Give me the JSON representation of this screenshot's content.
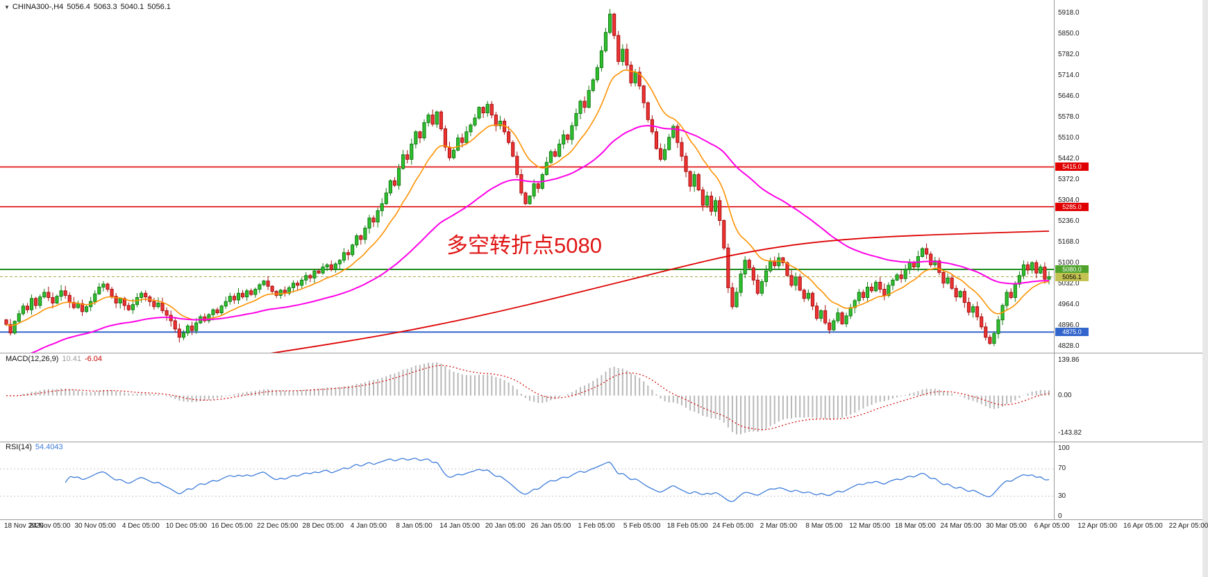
{
  "header": {
    "symbol": "CHINA300-,H4",
    "open": "5056.4",
    "high": "5063.3",
    "low": "5040.1",
    "close": "5056.1",
    "collapse_icon": "chevron-down-icon"
  },
  "annotation": {
    "text": "多空转折点5080",
    "color": "#e01515"
  },
  "price_axis": {
    "labels": [
      5918.0,
      5850.0,
      5782.0,
      5714.0,
      5646.0,
      5578.0,
      5510.0,
      5442.0,
      5372.0,
      5304.0,
      5236.0,
      5168.0,
      5100.0,
      5032.0,
      4964.0,
      4896.0,
      4828.0
    ]
  },
  "hlines": [
    {
      "name": "resistance-line-5415",
      "price": 5415.0,
      "label": "5415.0",
      "color": "#e00000",
      "tag_bg": "#e00000",
      "tag_fg": "#ffffff",
      "width": 1.6,
      "style": "solid"
    },
    {
      "name": "resistance-line-5285",
      "price": 5285.0,
      "label": "5285.0",
      "color": "#e00000",
      "tag_bg": "#e00000",
      "tag_fg": "#ffffff",
      "width": 1.6,
      "style": "solid"
    },
    {
      "name": "pivot-line-5080",
      "price": 5080.0,
      "label": "5080.0",
      "color": "#1d8a1d",
      "tag_bg": "#4fa32c",
      "tag_fg": "#ffffff",
      "width": 2,
      "style": "solid"
    },
    {
      "name": "current-price-line",
      "price": 5056.1,
      "label": "5056.1",
      "color": "#a8a84a",
      "tag_bg": "#c3c353",
      "tag_fg": "#000000",
      "width": 1,
      "style": "dash"
    },
    {
      "name": "support-line-4875",
      "price": 4875.0,
      "label": "4875.0",
      "color": "#3366cc",
      "tag_bg": "#3366cc",
      "tag_fg": "#ffffff",
      "width": 2,
      "style": "solid"
    }
  ],
  "time_axis": [
    "18 Nov 2020",
    "24 Nov 05:00",
    "30 Nov 05:00",
    "4 Dec 05:00",
    "10 Dec 05:00",
    "16 Dec 05:00",
    "22 Dec 05:00",
    "28 Dec 05:00",
    "4 Jan 05:00",
    "8 Jan 05:00",
    "14 Jan 05:00",
    "20 Jan 05:00",
    "26 Jan 05:00",
    "1 Feb 05:00",
    "5 Feb 05:00",
    "18 Feb 05:00",
    "24 Feb 05:00",
    "2 Mar 05:00",
    "8 Mar 05:00",
    "12 Mar 05:00",
    "18 Mar 05:00",
    "24 Mar 05:00",
    "30 Mar 05:00",
    "6 Apr 05:00",
    "12 Apr 05:00",
    "16 Apr 05:00",
    "22 Apr 05:00"
  ],
  "macd": {
    "label": "MACD(12,26,9)",
    "value_main": "10.41",
    "value_signal": "-6.04",
    "axis_labels": [
      "139.86",
      "0.00",
      "-143.82"
    ]
  },
  "rsi": {
    "label": "RSI(14)",
    "value": "54.4043",
    "axis_labels": [
      "100",
      "70",
      "30",
      "0"
    ],
    "levels": [
      70,
      30
    ]
  },
  "chart_data": {
    "type": "candlestick",
    "title": "CHINA300-,H4",
    "symbol": "CHINA300-",
    "timeframe": "H4",
    "x_labels": [
      "18 Nov 2020",
      "24 Nov 05:00",
      "30 Nov 05:00",
      "4 Dec 05:00",
      "10 Dec 05:00",
      "16 Dec 05:00",
      "22 Dec 05:00",
      "28 Dec 05:00",
      "4 Jan 05:00",
      "8 Jan 05:00",
      "14 Jan 05:00",
      "20 Jan 05:00",
      "26 Jan 05:00",
      "1 Feb 05:00",
      "5 Feb 05:00",
      "18 Feb 05:00",
      "24 Feb 05:00",
      "2 Mar 05:00",
      "8 Mar 05:00",
      "12 Mar 05:00",
      "18 Mar 05:00",
      "24 Mar 05:00",
      "30 Mar 05:00",
      "6 Apr 05:00",
      "12 Apr 05:00",
      "16 Apr 05:00",
      "22 Apr 05:00"
    ],
    "y_range": [
      4812,
      5952
    ],
    "current_bar": {
      "open": 5056.4,
      "high": 5063.3,
      "low": 5040.1,
      "close": 5056.1
    },
    "closes": [
      4900,
      4872,
      4910,
      4935,
      4960,
      4948,
      4985,
      4962,
      4990,
      5005,
      4988,
      4970,
      4992,
      5010,
      4995,
      4972,
      4955,
      4968,
      4942,
      4958,
      4975,
      5000,
      5022,
      5032,
      5015,
      4992,
      4970,
      4985,
      4962,
      4948,
      4965,
      4988,
      5002,
      4990,
      4975,
      4958,
      4970,
      4945,
      4930,
      4912,
      4885,
      4858,
      4872,
      4895,
      4880,
      4905,
      4925,
      4912,
      4932,
      4948,
      4938,
      4960,
      4975,
      4992,
      4980,
      5002,
      4990,
      5010,
      4998,
      5015,
      5030,
      5042,
      5025,
      5008,
      4995,
      5012,
      5002,
      5020,
      5035,
      5028,
      5045,
      5060,
      5052,
      5075,
      5068,
      5088,
      5095,
      5080,
      5098,
      5110,
      5135,
      5128,
      5160,
      5190,
      5178,
      5215,
      5248,
      5235,
      5272,
      5295,
      5330,
      5370,
      5355,
      5410,
      5455,
      5440,
      5490,
      5530,
      5510,
      5560,
      5585,
      5555,
      5595,
      5540,
      5480,
      5445,
      5470,
      5510,
      5495,
      5530,
      5552,
      5575,
      5610,
      5592,
      5620,
      5585,
      5550,
      5565,
      5530,
      5495,
      5450,
      5390,
      5330,
      5295,
      5320,
      5360,
      5345,
      5390,
      5430,
      5465,
      5450,
      5490,
      5520,
      5505,
      5550,
      5590,
      5630,
      5610,
      5665,
      5700,
      5740,
      5795,
      5855,
      5915,
      5845,
      5760,
      5800,
      5748,
      5690,
      5725,
      5680,
      5625,
      5570,
      5530,
      5475,
      5440,
      5472,
      5512,
      5548,
      5495,
      5450,
      5400,
      5352,
      5390,
      5340,
      5290,
      5320,
      5270,
      5305,
      5240,
      5150,
      5020,
      4958,
      5005,
      5065,
      5110,
      5085,
      5045,
      5002,
      5040,
      5075,
      5108,
      5092,
      5118,
      5102,
      5060,
      5028,
      5055,
      5012,
      4985,
      5002,
      4960,
      4920,
      4945,
      4905,
      4882,
      4912,
      4938,
      4902,
      4928,
      4955,
      4978,
      5005,
      4988,
      5022,
      5010,
      5038,
      5015,
      4995,
      5028,
      5045,
      5062,
      5050,
      5080,
      5102,
      5088,
      5122,
      5148,
      5130,
      5095,
      5108,
      5070,
      5035,
      5052,
      5018,
      4990,
      5008,
      4972,
      4940,
      4958,
      4925,
      4892,
      4858,
      4838,
      4870,
      4915,
      4962,
      5005,
      4988,
      5032,
      5060,
      5095,
      5078,
      5102,
      5068,
      5088,
      5048,
      5056
    ],
    "up_fill": "#2fc12f",
    "up_stroke": "#117a11",
    "down_fill": "#ee3333",
    "down_stroke": "#a60f0f",
    "ma_lines": [
      {
        "name": "ma-fast-line",
        "period": 13,
        "seed": 4900,
        "color": "#ff9100",
        "width": 1.6
      },
      {
        "name": "ma-medium-line",
        "period": 55,
        "seed": 4770,
        "color": "#ff00e6",
        "width": 2
      },
      {
        "name": "ma-slow-line",
        "color": "#dd0000",
        "width": 1.8,
        "points": [
          [
            60,
            4800
          ],
          [
            80,
            4842
          ],
          [
            100,
            4892
          ],
          [
            120,
            4952
          ],
          [
            140,
            5020
          ],
          [
            158,
            5082
          ],
          [
            172,
            5128
          ],
          [
            188,
            5165
          ],
          [
            205,
            5185
          ],
          [
            225,
            5196
          ],
          [
            247,
            5205
          ]
        ]
      }
    ],
    "indicators": {
      "macd": {
        "fast": 12,
        "slow": 26,
        "signal": 9,
        "current_main": 10.41,
        "current_signal": -6.04,
        "hist_color": "#b8b8b8",
        "signal_color": "#d00000",
        "axis_range": [
          -143.82,
          139.86
        ]
      },
      "rsi": {
        "period": 14,
        "current": 54.4043,
        "color": "#3c7bd9",
        "levels": [
          70,
          30
        ],
        "axis_range": [
          0,
          100
        ]
      }
    },
    "hlines": [
      5415.0,
      5285.0,
      5080.0,
      5056.1,
      4875.0
    ],
    "annotations": [
      "多空转折点5080"
    ]
  }
}
